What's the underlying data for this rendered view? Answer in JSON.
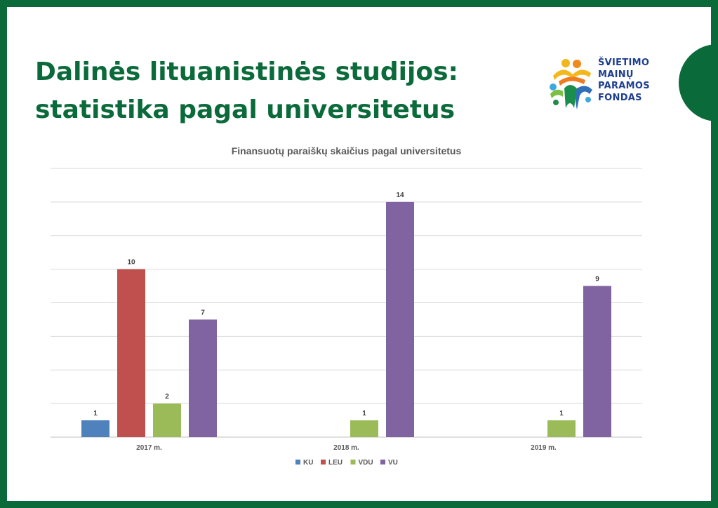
{
  "slide": {
    "title": "Dalinės lituanistinės studijos: statistika pagal universitetus",
    "border_color": "#0b6a3a",
    "title_color": "#0b6a3a"
  },
  "logo": {
    "lines": [
      "ŠVIETIMO",
      "MAINŲ",
      "PARAMOS",
      "FONDAS"
    ],
    "text_color": "#1e3f8f"
  },
  "chart_data": {
    "type": "bar",
    "title": "Finansuotų paraiškų skaičius pagal universitetus",
    "categories": [
      "2017 m.",
      "2018 m.",
      "2019 m."
    ],
    "series": [
      {
        "name": "KU",
        "color": "#4f81bd",
        "values": [
          1,
          null,
          null
        ]
      },
      {
        "name": "LEU",
        "color": "#c0504d",
        "values": [
          10,
          null,
          null
        ]
      },
      {
        "name": "VDU",
        "color": "#9bbb59",
        "values": [
          2,
          1,
          1
        ]
      },
      {
        "name": "VU",
        "color": "#8064a2",
        "values": [
          7,
          14,
          9
        ]
      }
    ],
    "ylim": [
      0,
      16
    ],
    "ytick_step": 2,
    "ytick_labels_shown": false,
    "grid": true,
    "data_labels": true,
    "legend_position": "bottom"
  }
}
